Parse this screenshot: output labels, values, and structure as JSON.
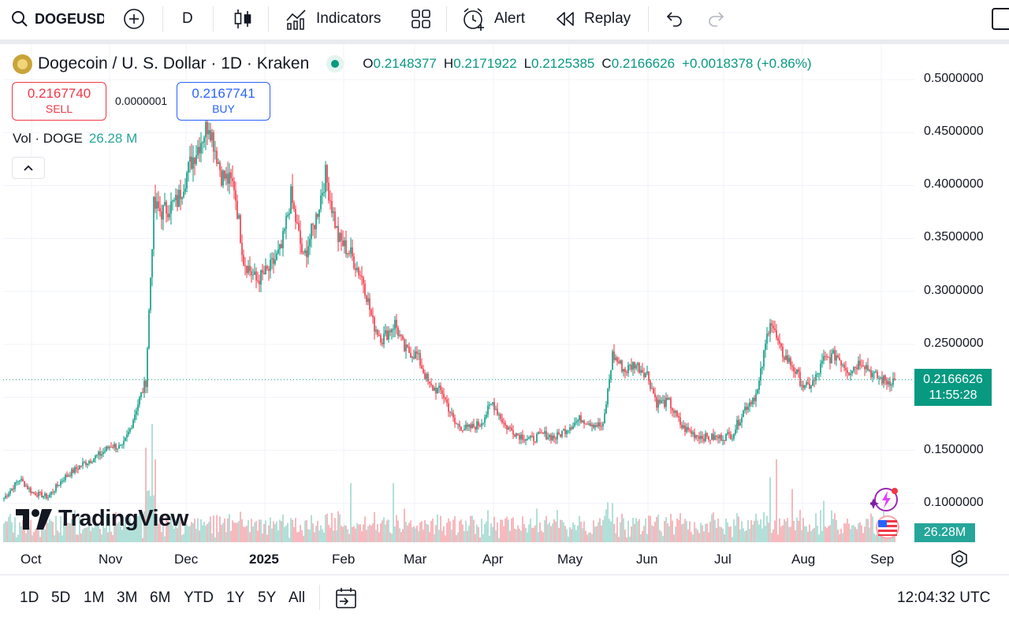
{
  "toolbar": {
    "symbol": "DOGEUSD",
    "interval": "D",
    "indicators_label": "Indicators",
    "alert_label": "Alert",
    "replay_label": "Replay"
  },
  "legend": {
    "title": "Dogecoin / U. S. Dollar · 1D · Kraken",
    "open_key": "O",
    "open": "0.2148377",
    "high_key": "H",
    "high": "0.2171922",
    "low_key": "L",
    "low": "0.2125385",
    "close_key": "C",
    "close": "0.2166626",
    "change": "+0.0018378 (+0.86%)"
  },
  "trade": {
    "sell_price": "0.2167740",
    "sell_label": "SELL",
    "buy_price": "0.2167741",
    "buy_label": "BUY",
    "spread": "0.0000001"
  },
  "volume_legend": {
    "label": "Vol · DOGE",
    "value": "26.28 M"
  },
  "watermark": "TradingView",
  "price_axis": {
    "labels": [
      "0.5000000",
      "0.4500000",
      "0.4000000",
      "0.3500000",
      "0.3000000",
      "0.2500000",
      "0.1500000",
      "0.1000000"
    ],
    "last_price": "0.2166626",
    "countdown": "11:55:28",
    "volume_tag": "26.28M"
  },
  "time_axis": {
    "labels": [
      "Oct",
      "Nov",
      "Dec",
      "2025",
      "Feb",
      "Mar",
      "Apr",
      "May",
      "Jun",
      "Jul",
      "Aug",
      "Sep"
    ]
  },
  "ranges": [
    "1D",
    "5D",
    "1M",
    "3M",
    "6M",
    "YTD",
    "1Y",
    "5Y",
    "All"
  ],
  "clock": "12:04:32 UTC",
  "colors": {
    "up": "#089981",
    "down": "#f23645",
    "vol_up": "#9fd8cf",
    "vol_down": "#f5a8ae",
    "accent": "#2962ff"
  },
  "chart_data": {
    "type": "candlestick",
    "title": "Dogecoin / U. S. Dollar · 1D · Kraken",
    "ylim": [
      0.08,
      0.51
    ],
    "x_labels": [
      "Oct",
      "Nov",
      "Dec",
      "2025",
      "Feb",
      "Mar",
      "Apr",
      "May",
      "Jun",
      "Jul",
      "Aug",
      "Sep"
    ],
    "y_ticks": [
      0.1,
      0.15,
      0.25,
      0.3,
      0.35,
      0.4,
      0.45,
      0.5
    ],
    "close_anchors": [
      [
        0,
        0.105
      ],
      [
        10,
        0.123
      ],
      [
        18,
        0.11
      ],
      [
        28,
        0.106
      ],
      [
        38,
        0.124
      ],
      [
        50,
        0.137
      ],
      [
        62,
        0.147
      ],
      [
        68,
        0.155
      ],
      [
        75,
        0.152
      ],
      [
        80,
        0.17
      ],
      [
        84,
        0.19
      ],
      [
        90,
        0.215
      ],
      [
        95,
        0.38
      ],
      [
        100,
        0.375
      ],
      [
        110,
        0.385
      ],
      [
        118,
        0.42
      ],
      [
        124,
        0.44
      ],
      [
        130,
        0.46
      ],
      [
        138,
        0.41
      ],
      [
        146,
        0.4
      ],
      [
        152,
        0.33
      ],
      [
        160,
        0.31
      ],
      [
        168,
        0.32
      ],
      [
        176,
        0.34
      ],
      [
        182,
        0.39
      ],
      [
        190,
        0.33
      ],
      [
        198,
        0.37
      ],
      [
        204,
        0.41
      ],
      [
        212,
        0.35
      ],
      [
        220,
        0.335
      ],
      [
        228,
        0.31
      ],
      [
        234,
        0.27
      ],
      [
        240,
        0.255
      ],
      [
        248,
        0.27
      ],
      [
        254,
        0.245
      ],
      [
        262,
        0.24
      ],
      [
        270,
        0.21
      ],
      [
        278,
        0.205
      ],
      [
        286,
        0.175
      ],
      [
        294,
        0.17
      ],
      [
        302,
        0.175
      ],
      [
        310,
        0.195
      ],
      [
        318,
        0.173
      ],
      [
        326,
        0.165
      ],
      [
        334,
        0.16
      ],
      [
        342,
        0.165
      ],
      [
        350,
        0.162
      ],
      [
        358,
        0.172
      ],
      [
        366,
        0.18
      ],
      [
        374,
        0.175
      ],
      [
        380,
        0.172
      ],
      [
        386,
        0.24
      ],
      [
        394,
        0.225
      ],
      [
        400,
        0.232
      ],
      [
        408,
        0.222
      ],
      [
        414,
        0.195
      ],
      [
        422,
        0.195
      ],
      [
        430,
        0.172
      ],
      [
        438,
        0.165
      ],
      [
        446,
        0.162
      ],
      [
        454,
        0.162
      ],
      [
        462,
        0.165
      ],
      [
        470,
        0.19
      ],
      [
        478,
        0.205
      ],
      [
        486,
        0.275
      ],
      [
        492,
        0.245
      ],
      [
        500,
        0.23
      ],
      [
        508,
        0.208
      ],
      [
        514,
        0.215
      ],
      [
        520,
        0.235
      ],
      [
        528,
        0.24
      ],
      [
        536,
        0.225
      ],
      [
        544,
        0.235
      ],
      [
        552,
        0.22
      ],
      [
        560,
        0.215
      ],
      [
        565,
        0.2167
      ]
    ],
    "volume_spikes": [
      [
        90,
        0.8
      ],
      [
        94,
        1.0
      ],
      [
        96,
        0.7
      ],
      [
        220,
        0.5
      ],
      [
        247,
        0.5
      ],
      [
        486,
        0.55
      ],
      [
        490,
        0.7
      ],
      [
        500,
        0.45
      ],
      [
        520,
        0.35
      ]
    ],
    "last": 0.2166626
  }
}
